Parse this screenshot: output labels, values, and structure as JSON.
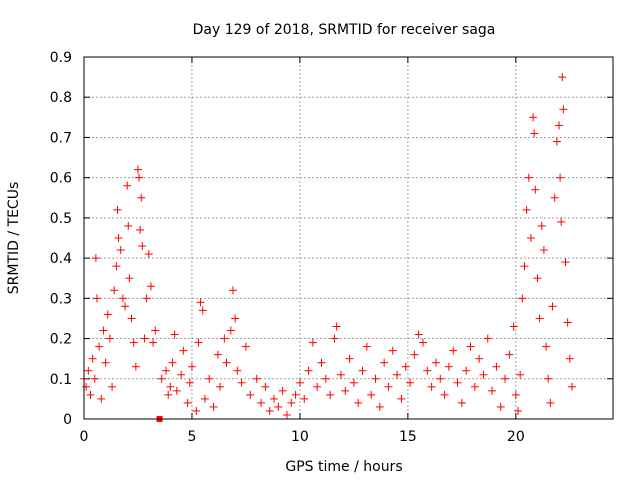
{
  "chart_data": {
    "type": "scatter",
    "title": "Day 129 of 2018, SRMTID for receiver saga",
    "xlabel": "GPS time / hours",
    "ylabel": "SRMTID / TECUs",
    "xlim": [
      0,
      24.5
    ],
    "ylim": [
      0,
      0.9
    ],
    "x_ticks": [
      0,
      5,
      10,
      15,
      20
    ],
    "y_ticks": [
      0,
      0.1,
      0.2,
      0.3,
      0.4,
      0.5,
      0.6,
      0.7,
      0.8,
      0.9
    ],
    "x_tick_labels": [
      "0",
      "5",
      "10",
      "15",
      "20"
    ],
    "y_tick_labels": [
      "0",
      "0.1",
      "0.2",
      "0.3",
      "0.4",
      "0.5",
      "0.6",
      "0.7",
      "0.8",
      "0.9"
    ],
    "grid": true,
    "marker": "+",
    "marker_color": "#ff0000",
    "highlight_point": {
      "x": 3.5,
      "y": 0.0,
      "marker": "square",
      "color": "#ff0000"
    },
    "series": [
      {
        "name": "SRMTID",
        "points": [
          [
            0.0,
            0.1
          ],
          [
            0.1,
            0.08
          ],
          [
            0.2,
            0.12
          ],
          [
            0.3,
            0.06
          ],
          [
            0.4,
            0.15
          ],
          [
            0.5,
            0.1
          ],
          [
            0.55,
            0.4
          ],
          [
            0.6,
            0.3
          ],
          [
            0.7,
            0.18
          ],
          [
            0.8,
            0.05
          ],
          [
            0.9,
            0.22
          ],
          [
            1.0,
            0.14
          ],
          [
            1.1,
            0.26
          ],
          [
            1.2,
            0.2
          ],
          [
            1.3,
            0.08
          ],
          [
            1.4,
            0.32
          ],
          [
            1.5,
            0.38
          ],
          [
            1.55,
            0.52
          ],
          [
            1.6,
            0.45
          ],
          [
            1.7,
            0.42
          ],
          [
            1.8,
            0.3
          ],
          [
            1.9,
            0.28
          ],
          [
            2.0,
            0.58
          ],
          [
            2.05,
            0.48
          ],
          [
            2.1,
            0.35
          ],
          [
            2.2,
            0.25
          ],
          [
            2.3,
            0.19
          ],
          [
            2.4,
            0.13
          ],
          [
            2.5,
            0.62
          ],
          [
            2.55,
            0.6
          ],
          [
            2.6,
            0.47
          ],
          [
            2.65,
            0.55
          ],
          [
            2.7,
            0.43
          ],
          [
            2.8,
            0.2
          ],
          [
            2.9,
            0.3
          ],
          [
            3.0,
            0.41
          ],
          [
            3.1,
            0.33
          ],
          [
            3.2,
            0.19
          ],
          [
            3.3,
            0.22
          ],
          [
            3.6,
            0.1
          ],
          [
            3.8,
            0.12
          ],
          [
            3.9,
            0.06
          ],
          [
            4.0,
            0.08
          ],
          [
            4.1,
            0.14
          ],
          [
            4.2,
            0.21
          ],
          [
            4.3,
            0.07
          ],
          [
            4.5,
            0.11
          ],
          [
            4.6,
            0.17
          ],
          [
            4.8,
            0.04
          ],
          [
            4.9,
            0.09
          ],
          [
            5.0,
            0.13
          ],
          [
            5.2,
            0.02
          ],
          [
            5.3,
            0.19
          ],
          [
            5.4,
            0.29
          ],
          [
            5.5,
            0.27
          ],
          [
            5.6,
            0.05
          ],
          [
            5.8,
            0.1
          ],
          [
            6.0,
            0.03
          ],
          [
            6.2,
            0.16
          ],
          [
            6.3,
            0.08
          ],
          [
            6.5,
            0.2
          ],
          [
            6.6,
            0.14
          ],
          [
            6.8,
            0.22
          ],
          [
            6.9,
            0.32
          ],
          [
            7.0,
            0.25
          ],
          [
            7.1,
            0.12
          ],
          [
            7.3,
            0.09
          ],
          [
            7.5,
            0.18
          ],
          [
            7.7,
            0.06
          ],
          [
            8.0,
            0.1
          ],
          [
            8.2,
            0.04
          ],
          [
            8.4,
            0.08
          ],
          [
            8.6,
            0.02
          ],
          [
            8.8,
            0.05
          ],
          [
            9.0,
            0.03
          ],
          [
            9.2,
            0.07
          ],
          [
            9.4,
            0.01
          ],
          [
            9.6,
            0.04
          ],
          [
            9.8,
            0.06
          ],
          [
            10.0,
            0.09
          ],
          [
            10.2,
            0.05
          ],
          [
            10.4,
            0.12
          ],
          [
            10.6,
            0.19
          ],
          [
            10.8,
            0.08
          ],
          [
            11.0,
            0.14
          ],
          [
            11.2,
            0.1
          ],
          [
            11.4,
            0.06
          ],
          [
            11.6,
            0.2
          ],
          [
            11.7,
            0.23
          ],
          [
            11.9,
            0.11
          ],
          [
            12.1,
            0.07
          ],
          [
            12.3,
            0.15
          ],
          [
            12.5,
            0.09
          ],
          [
            12.7,
            0.04
          ],
          [
            12.9,
            0.12
          ],
          [
            13.1,
            0.18
          ],
          [
            13.3,
            0.06
          ],
          [
            13.5,
            0.1
          ],
          [
            13.7,
            0.03
          ],
          [
            13.9,
            0.14
          ],
          [
            14.1,
            0.08
          ],
          [
            14.3,
            0.17
          ],
          [
            14.5,
            0.11
          ],
          [
            14.7,
            0.05
          ],
          [
            14.9,
            0.13
          ],
          [
            15.1,
            0.09
          ],
          [
            15.3,
            0.16
          ],
          [
            15.5,
            0.21
          ],
          [
            15.7,
            0.19
          ],
          [
            15.9,
            0.12
          ],
          [
            16.1,
            0.08
          ],
          [
            16.3,
            0.14
          ],
          [
            16.5,
            0.1
          ],
          [
            16.7,
            0.06
          ],
          [
            16.9,
            0.13
          ],
          [
            17.1,
            0.17
          ],
          [
            17.3,
            0.09
          ],
          [
            17.5,
            0.04
          ],
          [
            17.7,
            0.12
          ],
          [
            17.9,
            0.18
          ],
          [
            18.1,
            0.08
          ],
          [
            18.3,
            0.15
          ],
          [
            18.5,
            0.11
          ],
          [
            18.7,
            0.2
          ],
          [
            18.9,
            0.07
          ],
          [
            19.1,
            0.13
          ],
          [
            19.3,
            0.03
          ],
          [
            19.5,
            0.1
          ],
          [
            19.7,
            0.16
          ],
          [
            19.9,
            0.23
          ],
          [
            20.0,
            0.06
          ],
          [
            20.1,
            0.02
          ],
          [
            20.2,
            0.11
          ],
          [
            20.3,
            0.3
          ],
          [
            20.4,
            0.38
          ],
          [
            20.5,
            0.52
          ],
          [
            20.6,
            0.6
          ],
          [
            20.7,
            0.45
          ],
          [
            20.8,
            0.75
          ],
          [
            20.85,
            0.71
          ],
          [
            20.9,
            0.57
          ],
          [
            21.0,
            0.35
          ],
          [
            21.1,
            0.25
          ],
          [
            21.2,
            0.48
          ],
          [
            21.3,
            0.42
          ],
          [
            21.4,
            0.18
          ],
          [
            21.5,
            0.1
          ],
          [
            21.6,
            0.04
          ],
          [
            21.7,
            0.28
          ],
          [
            21.8,
            0.55
          ],
          [
            21.9,
            0.69
          ],
          [
            22.0,
            0.73
          ],
          [
            22.05,
            0.6
          ],
          [
            22.1,
            0.49
          ],
          [
            22.15,
            0.85
          ],
          [
            22.2,
            0.77
          ],
          [
            22.3,
            0.39
          ],
          [
            22.4,
            0.24
          ],
          [
            22.5,
            0.15
          ],
          [
            22.6,
            0.08
          ]
        ]
      }
    ]
  }
}
